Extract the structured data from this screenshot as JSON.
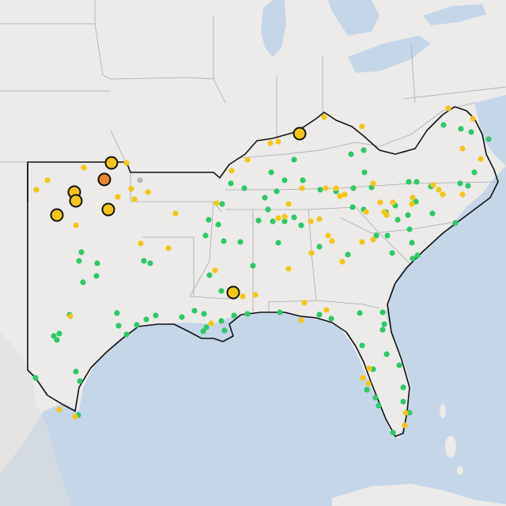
{
  "map": {
    "colors": {
      "land": "#ecebe9",
      "water": "#c4d6e8",
      "region_border": "#111111",
      "state_border": "#a9a9ad",
      "green": "#2ec866",
      "yellow": "#f5c518",
      "orange": "#e8842c",
      "gray": "#b8b8b8"
    },
    "marker_types": [
      "small-green-dot",
      "small-yellow-dot",
      "large-yellow-circle",
      "large-orange-circle",
      "small-gray-dot"
    ]
  }
}
